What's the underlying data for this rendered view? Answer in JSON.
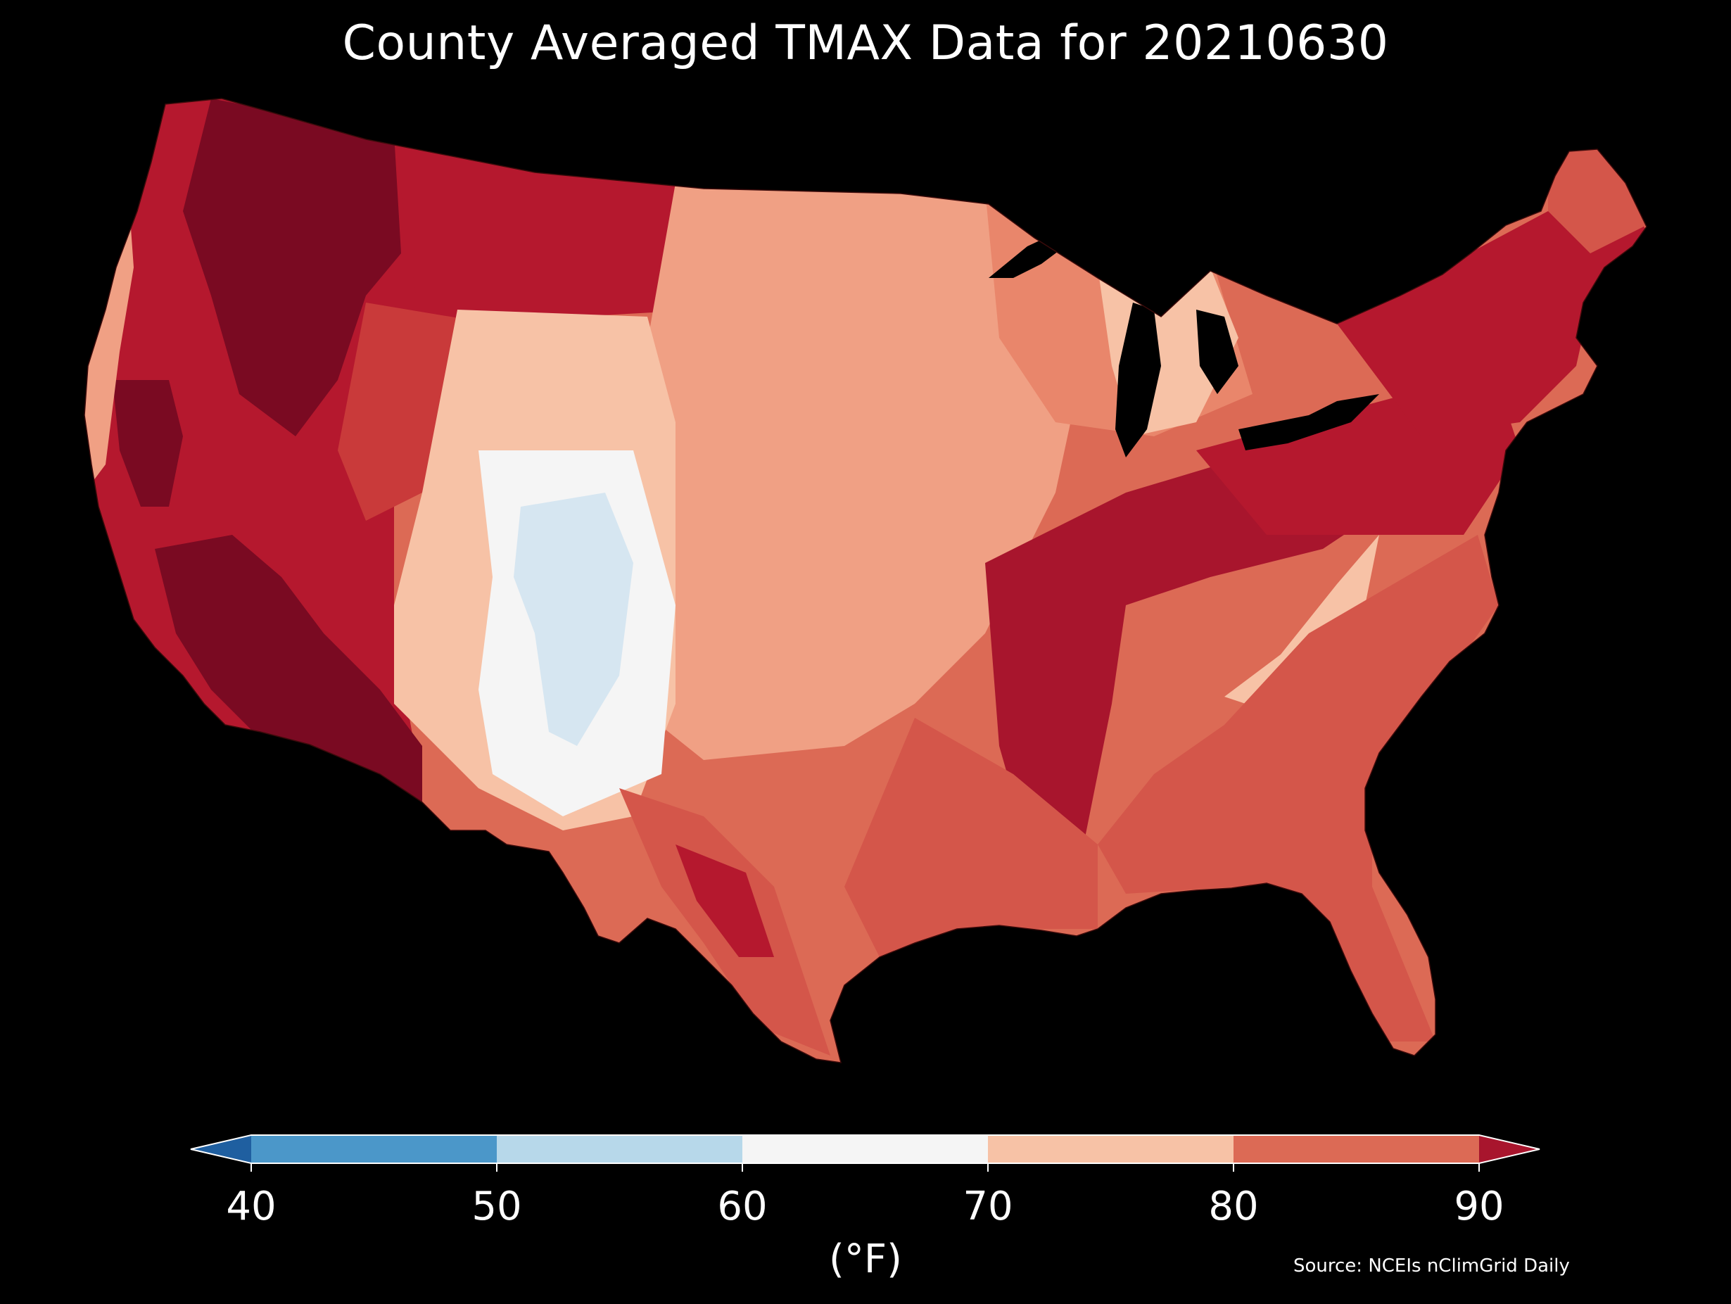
{
  "title": "County Averaged TMAX Data for 20210630",
  "source": "Source: NCEIs nClimGrid Daily",
  "colorbar": {
    "label": "(°F)",
    "ticks": [
      "40",
      "50",
      "60",
      "70",
      "80",
      "90"
    ],
    "bins": [
      {
        "range": "<40",
        "color": "#1f5fa0"
      },
      {
        "range": "40-50",
        "color": "#4b97c9"
      },
      {
        "range": "50-60",
        "color": "#b7d8ea"
      },
      {
        "range": "60-70",
        "color": "#f5f5f5"
      },
      {
        "range": "70-80",
        "color": "#f7c2a6"
      },
      {
        "range": "80-90",
        "color": "#dc6a55"
      },
      {
        "range": ">90",
        "color": "#a8152d"
      }
    ],
    "extend": "both"
  },
  "map": {
    "region": "Contiguous United States",
    "units": "°F",
    "regional_values": [
      {
        "region": "Pacific Northwest interior",
        "color": "#7a0a22"
      },
      {
        "region": "California Central Valley / Desert Southwest",
        "color": "#7a0a22"
      },
      {
        "region": "Northern Rockies / High Plains",
        "color": "#b5182e"
      },
      {
        "region": "Central Rockies (Colorado high terrain)",
        "color": "#d6e6f1"
      },
      {
        "region": "Great Plains",
        "color": "#f0a084"
      },
      {
        "region": "Upper Midwest / Michigan",
        "color": "#f7c2a6"
      },
      {
        "region": "Mid-South corridor",
        "color": "#a8152d"
      },
      {
        "region": "Appalachians",
        "color": "#f7c2a6"
      },
      {
        "region": "Southeast / Gulf Coast",
        "color": "#d4564a"
      },
      {
        "region": "Northeast",
        "color": "#b5182e"
      }
    ]
  }
}
